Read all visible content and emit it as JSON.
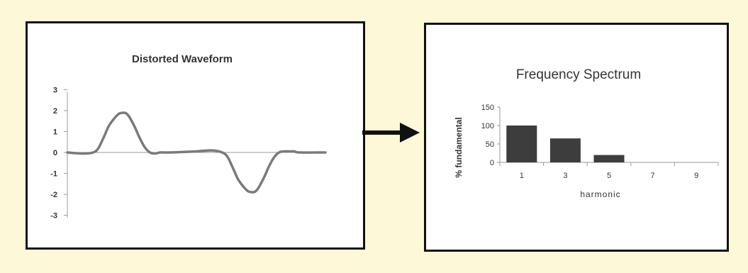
{
  "colors": {
    "background": "#fdf9d8",
    "panel": "#ffffff",
    "border": "#111111",
    "curve": "#7a7a7a",
    "bar": "#3d3d3d",
    "axis": "#999999",
    "text": "#333333"
  },
  "arrow": {
    "icon": "right-arrow-icon"
  },
  "chart_data": [
    {
      "type": "line",
      "title": "Distorted Waveform",
      "xlabel": "",
      "ylabel": "",
      "ylim": [
        -3,
        3
      ],
      "yticks": [
        3,
        2,
        1,
        0,
        -1,
        -2,
        -3
      ],
      "grid": false,
      "legend": "none",
      "series": [
        {
          "x": [
            0,
            6,
            10,
            12,
            14,
            16,
            18,
            20,
            22,
            23,
            24,
            26,
            28,
            30,
            32,
            34,
            36,
            38,
            40,
            50,
            56,
            60,
            62,
            64,
            66,
            68,
            70,
            72,
            73,
            74,
            76,
            78,
            80,
            82,
            84,
            86,
            88,
            90,
            100
          ],
          "y": [
            0,
            -0.05,
            0,
            0.2,
            0.7,
            1.25,
            1.6,
            1.85,
            1.9,
            1.85,
            1.7,
            1.25,
            0.7,
            0.25,
            0,
            -0.05,
            0,
            0,
            0,
            0.05,
            0.1,
            0,
            -0.2,
            -0.7,
            -1.25,
            -1.6,
            -1.85,
            -1.9,
            -1.85,
            -1.7,
            -1.25,
            -0.7,
            -0.25,
            0,
            0.05,
            0.05,
            0.05,
            0,
            0
          ]
        }
      ]
    },
    {
      "type": "bar",
      "title": "Frequency Spectrum",
      "xlabel": "harmonic",
      "ylabel": "% fundamental",
      "ylim": [
        0,
        150
      ],
      "yticks": [
        150,
        100,
        50,
        0
      ],
      "categories": [
        "1",
        "3",
        "5",
        "7",
        "9"
      ],
      "values": [
        100,
        65,
        20,
        0,
        0
      ],
      "grid": false,
      "legend": "none"
    }
  ]
}
